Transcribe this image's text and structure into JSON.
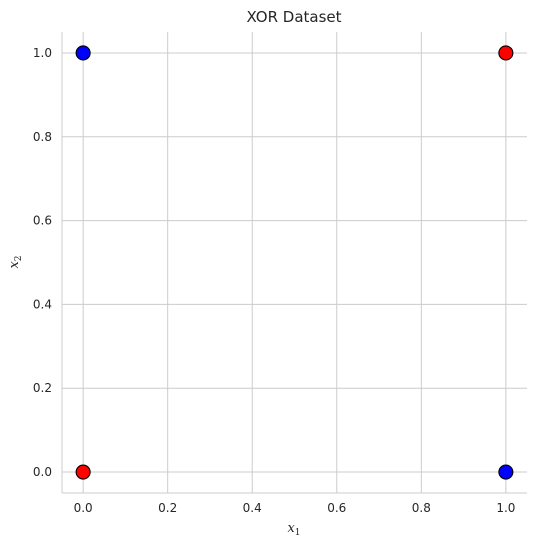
{
  "chart_data": {
    "type": "scatter",
    "title": "XOR Dataset",
    "xlabel": {
      "base": "x",
      "sub": "1"
    },
    "ylabel": {
      "base": "x",
      "sub": "2"
    },
    "xlim": [
      -0.05,
      1.05
    ],
    "ylim": [
      -0.05,
      1.05
    ],
    "xticks": [
      0.0,
      0.2,
      0.4,
      0.6,
      0.8,
      1.0
    ],
    "yticks": [
      0.0,
      0.2,
      0.4,
      0.6,
      0.8,
      1.0
    ],
    "xtick_labels": [
      "0.0",
      "0.2",
      "0.4",
      "0.6",
      "0.8",
      "1.0"
    ],
    "ytick_labels": [
      "0.0",
      "0.2",
      "0.4",
      "0.6",
      "0.8",
      "1.0"
    ],
    "grid": true,
    "points": [
      {
        "x": 0,
        "y": 0,
        "class": 0,
        "color": "#ff0000"
      },
      {
        "x": 0,
        "y": 1,
        "class": 1,
        "color": "#0000ff"
      },
      {
        "x": 1,
        "y": 0,
        "class": 1,
        "color": "#0000ff"
      },
      {
        "x": 1,
        "y": 1,
        "class": 0,
        "color": "#ff0000"
      }
    ],
    "colors": {
      "grid": "#cccccc",
      "spine": "#cccccc",
      "marker_edge": "#000000"
    }
  }
}
